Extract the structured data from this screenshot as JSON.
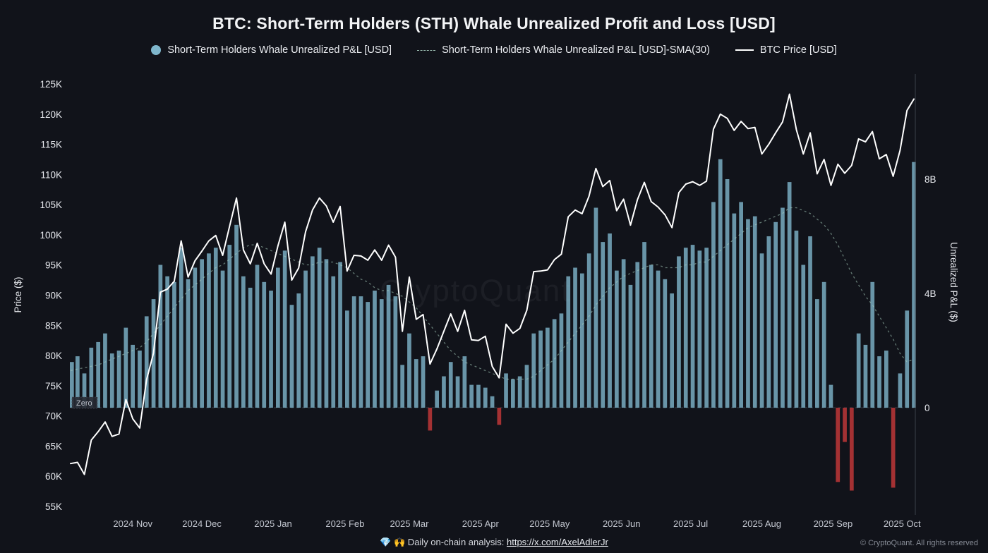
{
  "header": {
    "title": "BTC: Short-Term Holders (STH) Whale Unrealized Profit and Loss [USD]",
    "watermark": "CryptoQuant"
  },
  "legend": {
    "items": [
      {
        "label": "Short-Term Holders Whale Unrealized P&L [USD]",
        "marker": "circle",
        "color": "#7fb6cc"
      },
      {
        "label": "Short-Term Holders Whale Unrealized P&L [USD]-SMA(30)",
        "marker": "dashed-line",
        "color": "#a9cfc0"
      },
      {
        "label": "BTC Price [USD]",
        "marker": "solid-line",
        "color": "#ffffff"
      }
    ]
  },
  "axes": {
    "left": {
      "label": "Price ($)",
      "tick_labels": [
        "125K",
        "120K",
        "115K",
        "110K",
        "105K",
        "100K",
        "95K",
        "90K",
        "85K",
        "80K",
        "75K",
        "70K",
        "65K",
        "60K",
        "55K"
      ],
      "tick_values": [
        125,
        120,
        115,
        110,
        105,
        100,
        95,
        90,
        85,
        80,
        75,
        70,
        65,
        60,
        55
      ]
    },
    "right": {
      "label": "Unrealized P&L ($)",
      "tick_labels": [
        "8B",
        "4B",
        "0"
      ],
      "tick_values": [
        8,
        4,
        0
      ]
    },
    "x": {
      "ticks": [
        {
          "label": "2024 Nov",
          "i": 9
        },
        {
          "label": "2024 Dec",
          "i": 19
        },
        {
          "label": "2025 Jan",
          "i": 29.3
        },
        {
          "label": "2025 Feb",
          "i": 39.7
        },
        {
          "label": "2025 Mar",
          "i": 49
        },
        {
          "label": "2025 Apr",
          "i": 59.3
        },
        {
          "label": "2025 May",
          "i": 69.3
        },
        {
          "label": "2025 Jun",
          "i": 79.7
        },
        {
          "label": "2025 Jul",
          "i": 89.7
        },
        {
          "label": "2025 Aug",
          "i": 100
        },
        {
          "label": "2025 Sep",
          "i": 110.3
        },
        {
          "label": "2025 Oct",
          "i": 120.3
        }
      ]
    },
    "zero_label": "Zero"
  },
  "footer": {
    "prefix": "💎 🙌 Daily on-chain analysis:",
    "link": "https://x.com/AxelAdlerJr",
    "copyright": "© CryptoQuant. All rights reserved"
  },
  "chart_data": {
    "type": "mixed",
    "title": "BTC: Short-Term Holders (STH) Whale Unrealized Profit and Loss [USD]",
    "x_start": "2024-10-05",
    "x_step_days": 3,
    "y_left": {
      "label": "Price ($)",
      "unit": "K USD",
      "min": 55,
      "max": 125
    },
    "y_right": {
      "label": "Unrealized P&L ($)",
      "unit": "B USD",
      "ticks": [
        0,
        4,
        8
      ]
    },
    "legend_position": "top",
    "grid": false,
    "series": [
      {
        "name": "Short-Term Holders Whale Unrealized P&L [USD]",
        "type": "bar",
        "axis": "right",
        "unit": "B USD",
        "color_pos": "#7fb6cc",
        "color_neg": "#c93a3a",
        "values": [
          1.6,
          1.8,
          1.2,
          2.1,
          2.3,
          2.6,
          1.9,
          2.0,
          2.8,
          2.2,
          2.0,
          3.2,
          3.8,
          5.0,
          4.6,
          4.4,
          5.6,
          4.5,
          4.9,
          5.2,
          5.4,
          5.6,
          4.8,
          5.7,
          6.4,
          4.6,
          4.2,
          5.0,
          4.4,
          4.1,
          4.9,
          5.5,
          3.6,
          4.0,
          4.8,
          5.3,
          5.6,
          5.2,
          4.6,
          5.1,
          3.4,
          3.9,
          3.9,
          3.7,
          4.1,
          3.8,
          4.3,
          3.9,
          1.5,
          2.6,
          1.7,
          1.8,
          -0.8,
          0.6,
          1.1,
          1.6,
          1.1,
          1.8,
          0.8,
          0.8,
          0.7,
          0.4,
          -0.6,
          1.2,
          1.0,
          1.1,
          1.5,
          2.6,
          2.7,
          2.8,
          3.1,
          3.3,
          4.6,
          4.9,
          4.7,
          5.4,
          7.0,
          5.8,
          6.1,
          4.8,
          5.2,
          4.3,
          5.1,
          5.8,
          5.0,
          4.8,
          4.5,
          4.0,
          5.3,
          5.6,
          5.7,
          5.5,
          5.6,
          7.2,
          8.7,
          8.0,
          6.8,
          7.2,
          6.6,
          6.7,
          5.4,
          6.0,
          6.5,
          7.0,
          7.9,
          6.2,
          5.0,
          6.0,
          3.8,
          4.4,
          0.8,
          -2.6,
          -1.2,
          -2.9,
          2.6,
          2.2,
          4.4,
          1.8,
          2.0,
          -2.8,
          1.2,
          3.4,
          8.6
        ]
      },
      {
        "name": "Short-Term Holders Whale Unrealized P&L [USD]-SMA(30)",
        "type": "line",
        "dashed": true,
        "axis": "right",
        "unit": "B USD",
        "color": "#a9cfc0",
        "values": [
          1.3,
          1.35,
          1.4,
          1.45,
          1.5,
          1.6,
          1.7,
          1.8,
          1.9,
          2.0,
          2.1,
          2.3,
          2.6,
          2.9,
          3.2,
          3.5,
          3.8,
          4.1,
          4.3,
          4.5,
          4.7,
          4.9,
          5.0,
          5.2,
          5.4,
          5.6,
          5.7,
          5.7,
          5.6,
          5.5,
          5.4,
          5.3,
          5.2,
          5.1,
          5.0,
          5.0,
          5.1,
          5.1,
          5.1,
          5.0,
          4.9,
          4.7,
          4.5,
          4.4,
          4.2,
          4.1,
          4.1,
          4.0,
          3.9,
          3.7,
          3.5,
          3.2,
          2.9,
          2.6,
          2.3,
          2.0,
          1.8,
          1.6,
          1.5,
          1.4,
          1.3,
          1.2,
          1.1,
          1.0,
          1.0,
          1.0,
          1.0,
          1.1,
          1.3,
          1.5,
          1.7,
          2.0,
          2.3,
          2.6,
          2.9,
          3.2,
          3.6,
          3.9,
          4.2,
          4.4,
          4.6,
          4.7,
          4.8,
          4.9,
          5.0,
          5.0,
          4.9,
          4.9,
          4.9,
          5.0,
          5.0,
          5.1,
          5.1,
          5.3,
          5.5,
          5.7,
          5.9,
          6.1,
          6.3,
          6.4,
          6.5,
          6.6,
          6.7,
          6.8,
          7.0,
          7.0,
          6.9,
          6.8,
          6.6,
          6.4,
          6.1,
          5.7,
          5.2,
          4.7,
          4.3,
          3.9,
          3.6,
          3.2,
          2.8,
          2.4,
          1.9,
          1.6,
          1.7
        ]
      },
      {
        "name": "BTC Price [USD]",
        "type": "line",
        "axis": "left",
        "unit": "K USD",
        "color": "#ffffff",
        "values": [
          62.1,
          62.3,
          60.3,
          66.0,
          67.4,
          69.0,
          66.6,
          67.0,
          72.7,
          69.5,
          68.0,
          76.0,
          80.4,
          90.5,
          91.0,
          92.3,
          99.0,
          93.0,
          95.7,
          97.3,
          99.0,
          99.9,
          96.6,
          101.4,
          106.1,
          97.5,
          95.2,
          98.6,
          95.2,
          93.5,
          98.2,
          102.1,
          92.5,
          94.5,
          100.5,
          104.1,
          106.1,
          104.8,
          102.1,
          104.7,
          94.0,
          96.6,
          96.5,
          95.8,
          97.5,
          95.8,
          98.3,
          96.3,
          84.0,
          93.0,
          86.0,
          86.8,
          78.6,
          81.1,
          84.0,
          86.9,
          84.0,
          87.5,
          82.6,
          82.5,
          83.2,
          78.2,
          76.3,
          85.2,
          83.7,
          84.5,
          87.5,
          93.9,
          94.0,
          94.2,
          95.9,
          96.8,
          103.0,
          104.1,
          103.5,
          106.4,
          111.0,
          108.0,
          109.0,
          104.0,
          105.9,
          101.6,
          105.8,
          108.7,
          105.5,
          104.6,
          103.3,
          101.2,
          107.0,
          108.4,
          108.8,
          108.2,
          108.9,
          117.5,
          120.0,
          119.3,
          117.3,
          118.8,
          117.6,
          117.8,
          113.4,
          115.0,
          116.9,
          118.7,
          123.3,
          117.4,
          113.4,
          116.9,
          110.1,
          112.5,
          108.2,
          111.7,
          110.2,
          111.5,
          115.9,
          115.4,
          117.1,
          112.6,
          113.3,
          109.7,
          114.0,
          120.6,
          122.5
        ]
      }
    ]
  }
}
